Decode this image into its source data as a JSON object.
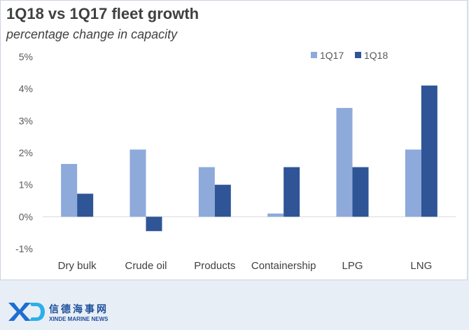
{
  "chart_data": {
    "type": "bar",
    "title": "1Q18 vs 1Q17 fleet growth",
    "subtitle": "percentage change in capacity",
    "categories": [
      "Dry bulk",
      "Crude oil",
      "Products",
      "Containership",
      "LPG",
      "LNG"
    ],
    "series": [
      {
        "name": "1Q17",
        "color": "#8eaadb",
        "values": [
          1.65,
          2.1,
          1.55,
          0.1,
          3.4,
          2.1
        ]
      },
      {
        "name": "1Q18",
        "color": "#2f5597",
        "values": [
          0.72,
          -0.45,
          1.0,
          1.55,
          1.55,
          4.1
        ]
      }
    ],
    "y_ticks": [
      -1,
      0,
      1,
      2,
      3,
      4,
      5
    ],
    "y_tick_labels": [
      "-1%",
      "0%",
      "1%",
      "2%",
      "3%",
      "4%",
      "5%"
    ],
    "ylim": [
      -1,
      5
    ],
    "xlabel": "",
    "ylabel": "",
    "grid": false,
    "legend_position": "top-right"
  },
  "logo": {
    "mark": "XD",
    "chinese": "信德海事网",
    "english": "XINDE MARINE NEWS"
  }
}
